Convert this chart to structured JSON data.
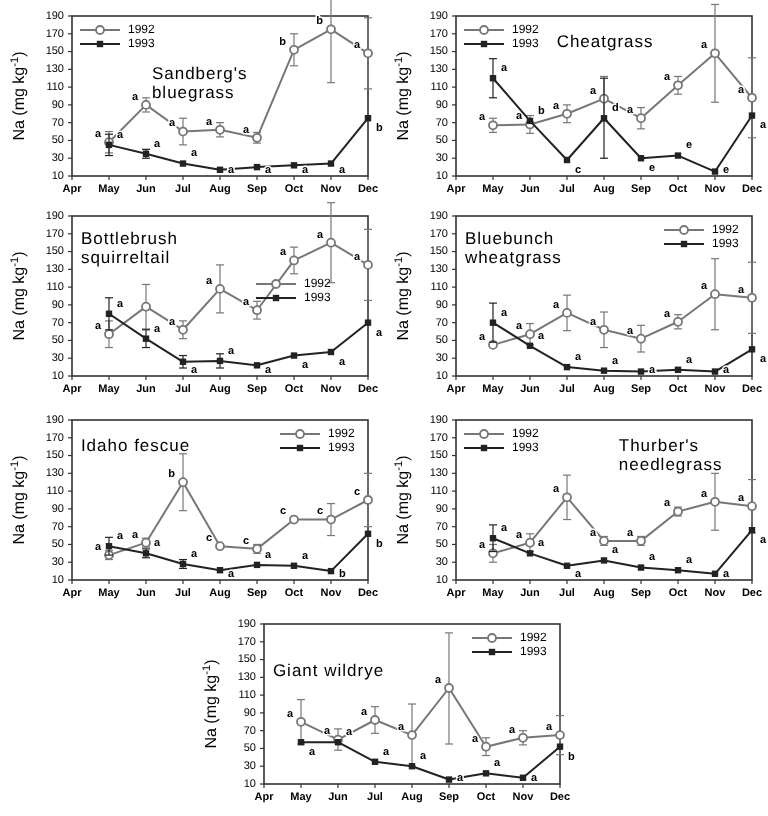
{
  "chart_data": [
    {
      "type": "line",
      "title": "Sandberg's bluegrass",
      "ylabel": "Na (mg kg$^{-1}$)",
      "categories": [
        "Apr",
        "May",
        "Jun",
        "Jul",
        "Aug",
        "Sep",
        "Oct",
        "Nov",
        "Dec"
      ],
      "ylim": [
        10,
        190
      ],
      "yticks": [
        10,
        30,
        50,
        70,
        90,
        110,
        130,
        150,
        170,
        190
      ],
      "legend": "top left",
      "series": [
        {
          "name": "1992",
          "color": "#777777",
          "marker": "circle",
          "values": [
            null,
            48,
            90,
            60,
            62,
            53,
            152,
            175,
            148
          ],
          "errors": [
            null,
            12,
            8,
            15,
            8,
            6,
            18,
            60,
            40
          ],
          "value_labels": [
            null,
            "a",
            "a",
            "a",
            "a",
            "a",
            "b",
            "b",
            "a"
          ]
        },
        {
          "name": "1993",
          "color": "#222222",
          "marker": "square",
          "values": [
            null,
            45,
            35,
            24,
            17,
            20,
            22,
            24,
            75
          ],
          "errors": [
            null,
            12,
            5,
            null,
            null,
            null,
            null,
            null,
            null
          ],
          "value_labels": [
            null,
            "a",
            "a",
            "a",
            "a",
            "a",
            "a",
            "a",
            "b"
          ]
        }
      ]
    },
    {
      "type": "line",
      "title": "Cheatgrass",
      "ylabel": "Na (mg kg$^{-1}$)",
      "categories": [
        "Apr",
        "May",
        "Jun",
        "Jul",
        "Aug",
        "Sep",
        "Oct",
        "Nov",
        "Dec"
      ],
      "ylim": [
        10,
        190
      ],
      "yticks": [
        10,
        30,
        50,
        70,
        90,
        110,
        130,
        150,
        170,
        190
      ],
      "legend": "top left",
      "series": [
        {
          "name": "1992",
          "color": "#777777",
          "marker": "circle",
          "values": [
            null,
            67,
            68,
            80,
            97,
            75,
            112,
            148,
            98
          ],
          "errors": [
            null,
            8,
            10,
            10,
            25,
            12,
            10,
            55,
            45
          ],
          "value_labels": [
            null,
            "a",
            "a",
            "a",
            "a",
            "a",
            "a",
            "a",
            "a"
          ]
        },
        {
          "name": "1993",
          "color": "#222222",
          "marker": "square",
          "values": [
            null,
            120,
            72,
            28,
            75,
            30,
            33,
            15,
            78
          ],
          "errors": [
            null,
            22,
            null,
            null,
            45,
            null,
            null,
            null,
            null
          ],
          "value_labels": [
            null,
            "a",
            "b",
            "c",
            "d",
            "e",
            "e",
            "e",
            "a"
          ]
        }
      ]
    },
    {
      "type": "line",
      "title": "Bottlebrush squirreltail",
      "ylabel": "Na (mg kg$^{-1}$)",
      "categories": [
        "Apr",
        "May",
        "Jun",
        "Jul",
        "Aug",
        "Sep",
        "Oct",
        "Nov",
        "Dec"
      ],
      "ylim": [
        10,
        190
      ],
      "yticks": [
        10,
        30,
        50,
        70,
        90,
        110,
        130,
        150,
        170,
        190
      ],
      "legend": "right",
      "series": [
        {
          "name": "1992",
          "color": "#777777",
          "marker": "circle",
          "values": [
            null,
            57,
            88,
            62,
            108,
            84,
            140,
            160,
            135
          ],
          "errors": [
            null,
            15,
            25,
            10,
            27,
            10,
            15,
            45,
            40
          ],
          "value_labels": [
            null,
            "a",
            null,
            "a",
            "a",
            "a",
            "a",
            "a",
            "a"
          ]
        },
        {
          "name": "1993",
          "color": "#222222",
          "marker": "square",
          "values": [
            null,
            80,
            52,
            26,
            27,
            22,
            33,
            37,
            70
          ],
          "errors": [
            null,
            18,
            10,
            7,
            8,
            null,
            null,
            null,
            null
          ],
          "value_labels": [
            null,
            "a",
            "a",
            "a",
            "a",
            "a",
            "a",
            "a",
            "a"
          ]
        }
      ]
    },
    {
      "type": "line",
      "title": "Bluebunch wheatgrass",
      "ylabel": "Na (mg kg$^{-1}$)",
      "categories": [
        "Apr",
        "May",
        "Jun",
        "Jul",
        "Aug",
        "Sep",
        "Oct",
        "Nov",
        "Dec"
      ],
      "ylim": [
        10,
        190
      ],
      "yticks": [
        10,
        30,
        50,
        70,
        90,
        110,
        130,
        150,
        170,
        190
      ],
      "legend": "top right",
      "series": [
        {
          "name": "1992",
          "color": "#777777",
          "marker": "circle",
          "values": [
            null,
            45,
            57,
            81,
            62,
            52,
            71,
            102,
            98
          ],
          "errors": [
            null,
            null,
            12,
            20,
            20,
            15,
            8,
            40,
            40
          ],
          "value_labels": [
            null,
            "a",
            "a",
            "a",
            "a",
            "a",
            "a",
            "a",
            "a"
          ]
        },
        {
          "name": "1993",
          "color": "#222222",
          "marker": "square",
          "values": [
            null,
            70,
            44,
            20,
            16,
            15,
            17,
            15,
            40
          ],
          "errors": [
            null,
            22,
            null,
            null,
            null,
            null,
            null,
            null,
            null
          ],
          "value_labels": [
            null,
            "a",
            "a",
            "a",
            "a",
            "a",
            "a",
            "a",
            "a"
          ]
        }
      ]
    },
    {
      "type": "line",
      "title": "Idaho fescue",
      "ylabel": "Na (mg kg$^{-1}$)",
      "categories": [
        "Apr",
        "May",
        "Jun",
        "Jul",
        "Aug",
        "Sep",
        "Oct",
        "Nov",
        "Dec"
      ],
      "ylim": [
        10,
        190
      ],
      "yticks": [
        10,
        30,
        50,
        70,
        90,
        110,
        130,
        150,
        170,
        190
      ],
      "legend": "top right",
      "series": [
        {
          "name": "1992",
          "color": "#777777",
          "marker": "circle",
          "values": [
            null,
            38,
            52,
            120,
            48,
            45,
            78,
            78,
            100
          ],
          "errors": [
            null,
            5,
            5,
            32,
            null,
            5,
            null,
            18,
            30
          ],
          "value_labels": [
            null,
            "a",
            "a",
            "b",
            "c",
            "c",
            "c",
            "c",
            "c"
          ]
        },
        {
          "name": "1993",
          "color": "#222222",
          "marker": "square",
          "values": [
            null,
            48,
            40,
            28,
            21,
            27,
            26,
            20,
            62
          ],
          "errors": [
            null,
            10,
            5,
            5,
            null,
            null,
            null,
            null,
            null
          ],
          "value_labels": [
            null,
            "a",
            "a",
            "a",
            "a",
            "a",
            "a",
            "b",
            "b"
          ]
        }
      ]
    },
    {
      "type": "line",
      "title": "Thurber's needlegrass",
      "ylabel": "Na (mg kg$^{-1}$)",
      "categories": [
        "Apr",
        "May",
        "Jun",
        "Jul",
        "Aug",
        "Sep",
        "Oct",
        "Nov",
        "Dec"
      ],
      "ylim": [
        10,
        190
      ],
      "yticks": [
        10,
        30,
        50,
        70,
        90,
        110,
        130,
        150,
        170,
        190
      ],
      "legend": "top left",
      "series": [
        {
          "name": "1992",
          "color": "#777777",
          "marker": "circle",
          "values": [
            null,
            40,
            52,
            103,
            54,
            54,
            87,
            98,
            93
          ],
          "errors": [
            null,
            10,
            10,
            25,
            5,
            5,
            5,
            32,
            30
          ],
          "value_labels": [
            null,
            "a",
            "a",
            "a",
            "a",
            "a",
            "a",
            "a",
            "a"
          ]
        },
        {
          "name": "1993",
          "color": "#222222",
          "marker": "square",
          "values": [
            null,
            57,
            40,
            26,
            32,
            24,
            21,
            17,
            66
          ],
          "errors": [
            null,
            15,
            null,
            null,
            null,
            null,
            null,
            null,
            null
          ],
          "value_labels": [
            null,
            "a",
            "a",
            "a",
            "a",
            "a",
            "a",
            "a",
            "a"
          ]
        }
      ]
    },
    {
      "type": "line",
      "title": "Giant wildrye",
      "ylabel": "Na (mg kg$^{-1}$)",
      "categories": [
        "Apr",
        "May",
        "Jun",
        "Jul",
        "Aug",
        "Sep",
        "Oct",
        "Nov",
        "Dec"
      ],
      "ylim": [
        10,
        190
      ],
      "yticks": [
        10,
        30,
        50,
        70,
        90,
        110,
        130,
        150,
        170,
        190
      ],
      "legend": "top right",
      "series": [
        {
          "name": "1992",
          "color": "#777777",
          "marker": "circle",
          "values": [
            null,
            80,
            60,
            82,
            65,
            118,
            52,
            62,
            65
          ],
          "errors": [
            null,
            25,
            12,
            15,
            35,
            [
              55,
              180
            ],
            10,
            8,
            22
          ],
          "value_labels": [
            null,
            "a",
            "a",
            "a",
            "a",
            "a",
            "a",
            "a",
            "a"
          ]
        },
        {
          "name": "1993",
          "color": "#222222",
          "marker": "square",
          "values": [
            null,
            57,
            57,
            35,
            30,
            15,
            22,
            17,
            52
          ],
          "value_labels": [
            null,
            "a",
            "a",
            "a",
            "a",
            "a",
            "a",
            "a",
            "b"
          ]
        }
      ]
    }
  ]
}
